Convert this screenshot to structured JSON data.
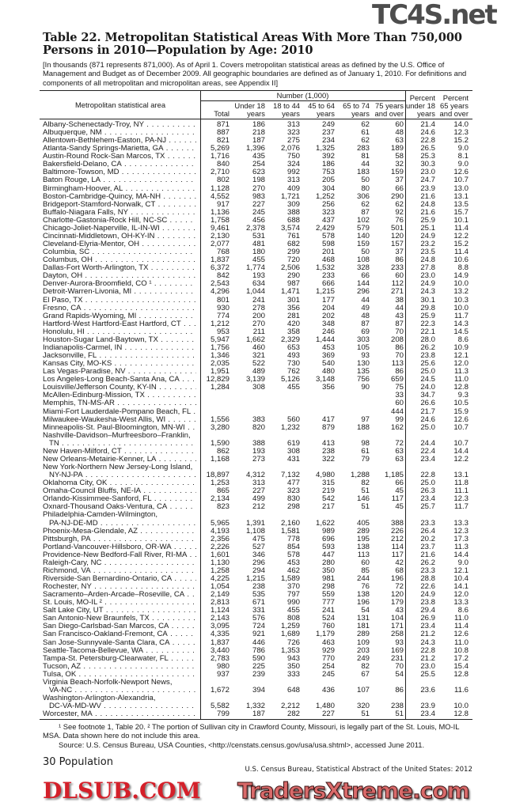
{
  "title": "Table 22. Metropolitan Statistical Areas With More Than 750,000 Persons in 2010—Population by Age: 2010",
  "headnote": "[In thousands (871 represents 871,000). As of April 1. Covers metropolitan statistical areas as defined by the U.S. Office of Management and Budget as of December 2009. All geographic boundaries are defined as of January 1, 2010. For definitions and components of all metropolitan and micropolitan areas, see Appendix II]",
  "header": {
    "area": "Metropolitan statistical area",
    "number_group": "Number (1,000)",
    "columns": [
      [
        "",
        "Total"
      ],
      [
        "Under 18",
        "years"
      ],
      [
        "18 to 44",
        "years"
      ],
      [
        "45 to 64",
        "years"
      ],
      [
        "65 to 74",
        "years"
      ],
      [
        "75 years",
        "and over"
      ],
      [
        "Percent",
        "under 18",
        "years"
      ],
      [
        "Percent",
        "65 years",
        "and over"
      ]
    ]
  },
  "rows": [
    {
      "name": [
        "Albany-Schenectady-Troy, NY"
      ],
      "v": [
        "871",
        "186",
        "313",
        "249",
        "62",
        "60",
        "21.4",
        "14.0"
      ]
    },
    {
      "name": [
        "Albuquerque, NM"
      ],
      "v": [
        "887",
        "218",
        "323",
        "237",
        "61",
        "48",
        "24.6",
        "12.3"
      ]
    },
    {
      "name": [
        "Allentown-Bethlehem-Easton, PA-NJ"
      ],
      "v": [
        "821",
        "187",
        "275",
        "234",
        "62",
        "63",
        "22.8",
        "15.2"
      ]
    },
    {
      "name": [
        "Atlanta-Sandy Springs-Marietta, GA"
      ],
      "v": [
        "5,269",
        "1,396",
        "2,076",
        "1,325",
        "283",
        "189",
        "26.5",
        "9.0"
      ]
    },
    {
      "name": [
        "Austin-Round Rock-San Marcos, TX"
      ],
      "v": [
        "1,716",
        "435",
        "750",
        "392",
        "81",
        "58",
        "25.3",
        "8.1"
      ]
    },
    {
      "name": [
        "Bakersfield-Delano, CA"
      ],
      "v": [
        "840",
        "254",
        "324",
        "186",
        "44",
        "32",
        "30.3",
        "9.0"
      ]
    },
    {
      "name": [
        "Baltimore-Towson, MD"
      ],
      "v": [
        "2,710",
        "623",
        "992",
        "753",
        "183",
        "159",
        "23.0",
        "12.6"
      ]
    },
    {
      "name": [
        "Baton Rouge, LA"
      ],
      "v": [
        "802",
        "198",
        "313",
        "205",
        "50",
        "37",
        "24.7",
        "10.7"
      ]
    },
    {
      "name": [
        "Birmingham-Hoover, AL"
      ],
      "v": [
        "1,128",
        "270",
        "409",
        "304",
        "80",
        "66",
        "23.9",
        "13.0"
      ]
    },
    {
      "name": [
        "Boston-Cambridge-Quincy, MA-NH"
      ],
      "v": [
        "4,552",
        "983",
        "1,721",
        "1,252",
        "306",
        "290",
        "21.6",
        "13.1"
      ]
    },
    {
      "name": [
        "Bridgeport-Stamford-Norwalk, CT"
      ],
      "v": [
        "917",
        "227",
        "309",
        "256",
        "62",
        "62",
        "24.8",
        "13.5"
      ]
    },
    {
      "name": [
        "Buffalo-Niagara Falls, NY"
      ],
      "v": [
        "1,136",
        "245",
        "388",
        "323",
        "87",
        "92",
        "21.6",
        "15.7"
      ]
    },
    {
      "name": [
        "Charlotte-Gastonia-Rock Hill, NC-SC"
      ],
      "v": [
        "1,758",
        "456",
        "688",
        "437",
        "102",
        "76",
        "25.9",
        "10.1"
      ]
    },
    {
      "name": [
        "Chicago-Joliet-Naperville, IL-IN-WI"
      ],
      "v": [
        "9,461",
        "2,378",
        "3,574",
        "2,429",
        "579",
        "501",
        "25.1",
        "11.4"
      ]
    },
    {
      "name": [
        "Cincinnati-Middletown, OH-KY-IN"
      ],
      "v": [
        "2,130",
        "531",
        "761",
        "578",
        "140",
        "120",
        "24.9",
        "12.2"
      ]
    },
    {
      "name": [
        "Cleveland-Elyria-Mentor, OH"
      ],
      "v": [
        "2,077",
        "481",
        "682",
        "598",
        "159",
        "157",
        "23.2",
        "15.2"
      ]
    },
    {
      "name": [
        "Columbia, SC"
      ],
      "v": [
        "768",
        "180",
        "299",
        "201",
        "50",
        "37",
        "23.5",
        "11.4"
      ]
    },
    {
      "name": [
        "Columbus, OH"
      ],
      "v": [
        "1,837",
        "455",
        "720",
        "468",
        "108",
        "86",
        "24.8",
        "10.6"
      ]
    },
    {
      "name": [
        "Dallas-Fort Worth-Arlington, TX"
      ],
      "v": [
        "6,372",
        "1,774",
        "2,506",
        "1,532",
        "328",
        "233",
        "27.8",
        "8.8"
      ]
    },
    {
      "name": [
        "Dayton, OH"
      ],
      "v": [
        "842",
        "193",
        "290",
        "233",
        "66",
        "60",
        "23.0",
        "14.9"
      ]
    },
    {
      "name": [
        "Denver-Aurora-Broomfield, CO ¹"
      ],
      "v": [
        "2,543",
        "634",
        "987",
        "666",
        "144",
        "112",
        "24.9",
        "10.0"
      ]
    },
    {
      "name": [
        "Detroit-Warren-Livonia, MI"
      ],
      "v": [
        "4,296",
        "1,044",
        "1,471",
        "1,215",
        "296",
        "271",
        "24.3",
        "13.2"
      ]
    },
    {
      "name": [
        "El Paso, TX"
      ],
      "v": [
        "801",
        "241",
        "301",
        "177",
        "44",
        "38",
        "30.1",
        "10.3"
      ]
    },
    {
      "name": [
        "Fresno, CA"
      ],
      "v": [
        "930",
        "278",
        "356",
        "204",
        "49",
        "44",
        "29.8",
        "10.0"
      ]
    },
    {
      "name": [
        "Grand Rapids-Wyoming, MI"
      ],
      "v": [
        "774",
        "200",
        "281",
        "202",
        "48",
        "43",
        "25.9",
        "11.7"
      ]
    },
    {
      "name": [
        "Hartford-West Hartford-East Hartford, CT"
      ],
      "v": [
        "1,212",
        "270",
        "420",
        "348",
        "87",
        "87",
        "22.3",
        "14.3"
      ]
    },
    {
      "name": [
        "Honolulu, HI"
      ],
      "v": [
        "953",
        "211",
        "358",
        "246",
        "69",
        "70",
        "22.1",
        "14.5"
      ]
    },
    {
      "name": [
        "Houston-Sugar Land-Baytown, TX"
      ],
      "v": [
        "5,947",
        "1,662",
        "2,329",
        "1,444",
        "303",
        "208",
        "28.0",
        "8.6"
      ]
    },
    {
      "name": [
        "Indianapolis-Carmel, IN"
      ],
      "v": [
        "1,756",
        "460",
        "653",
        "453",
        "105",
        "86",
        "26.2",
        "10.9"
      ]
    },
    {
      "name": [
        "Jacksonville, FL"
      ],
      "v": [
        "1,346",
        "321",
        "493",
        "369",
        "93",
        "70",
        "23.8",
        "12.1"
      ]
    },
    {
      "name": [
        "Kansas City, MO-KS"
      ],
      "v": [
        "2,035",
        "522",
        "730",
        "540",
        "130",
        "113",
        "25.6",
        "12.0"
      ]
    },
    {
      "name": [
        "Las Vegas-Paradise, NV"
      ],
      "v": [
        "1,951",
        "489",
        "762",
        "480",
        "135",
        "86",
        "25.0",
        "11.3"
      ]
    },
    {
      "name": [
        "Los Angeles-Long Beach-Santa Ana, CA"
      ],
      "v": [
        "12,829",
        "3,139",
        "5,126",
        "3,148",
        "756",
        "659",
        "24.5",
        "11.0"
      ]
    },
    {
      "name": [
        "Louisville/Jefferson County, KY-IN"
      ],
      "v": [
        "1,284",
        "308",
        "455",
        "356",
        "90",
        "75",
        "24.0",
        "12.8"
      ]
    },
    {
      "name": [
        "McAllen-Edinburg-Mission, TX"
      ],
      "v": [
        "",
        "",
        "",
        "",
        "",
        "33",
        "34.7",
        "9.3"
      ]
    },
    {
      "name": [
        "Memphis, TN-MS-AR"
      ],
      "v": [
        "",
        "",
        "",
        "",
        "",
        "60",
        "26.6",
        "10.5"
      ]
    },
    {
      "name": [
        "Miami-Fort Lauderdale-Pompano Beach, FL"
      ],
      "v": [
        "",
        "",
        "",
        "",
        "",
        "444",
        "21.7",
        "15.9"
      ]
    },
    {
      "name": [
        "Milwaukee-Waukesha-West Allis, WI"
      ],
      "v": [
        "1,556",
        "383",
        "560",
        "417",
        "97",
        "99",
        "24.6",
        "12.6"
      ]
    },
    {
      "name": [
        "Minneapolis-St. Paul-Bloomington, MN-WI"
      ],
      "v": [
        "3,280",
        "820",
        "1,232",
        "879",
        "188",
        "162",
        "25.0",
        "10.7"
      ]
    },
    {
      "name": [
        "Nashville-Davidson–Murfreesboro–Franklin,",
        "TN"
      ],
      "v": [
        "1,590",
        "388",
        "619",
        "413",
        "98",
        "72",
        "24.4",
        "10.7"
      ]
    },
    {
      "name": [
        "New Haven-Milford, CT"
      ],
      "v": [
        "862",
        "193",
        "308",
        "238",
        "61",
        "63",
        "22.4",
        "14.4"
      ]
    },
    {
      "name": [
        "New Orleans-Metairie-Kenner, LA"
      ],
      "v": [
        "1,168",
        "273",
        "431",
        "322",
        "79",
        "63",
        "23.4",
        "12.2"
      ]
    },
    {
      "name": [
        "New York-Northern New Jersey-Long Island,",
        "NY-NJ-PA"
      ],
      "v": [
        "18,897",
        "4,312",
        "7,132",
        "4,980",
        "1,288",
        "1,185",
        "22.8",
        "13.1"
      ]
    },
    {
      "name": [
        "Oklahoma City, OK"
      ],
      "v": [
        "1,253",
        "313",
        "477",
        "315",
        "82",
        "66",
        "25.0",
        "11.8"
      ]
    },
    {
      "name": [
        "Omaha-Council Bluffs, NE-IA"
      ],
      "v": [
        "865",
        "227",
        "323",
        "219",
        "51",
        "45",
        "26.3",
        "11.1"
      ]
    },
    {
      "name": [
        "Orlando-Kissimmee-Sanford,  FL"
      ],
      "v": [
        "2,134",
        "499",
        "830",
        "542",
        "146",
        "117",
        "23.4",
        "12.3"
      ]
    },
    {
      "name": [
        "Oxnard-Thousand Oaks-Ventura, CA"
      ],
      "v": [
        "823",
        "212",
        "298",
        "217",
        "51",
        "45",
        "25.7",
        "11.7"
      ]
    },
    {
      "name": [
        "Philadelphia-Camden-Wilmington,",
        "PA-NJ-DE-MD"
      ],
      "v": [
        "5,965",
        "1,391",
        "2,160",
        "1,622",
        "405",
        "388",
        "23.3",
        "13.3"
      ]
    },
    {
      "name": [
        "Phoenix-Mesa-Glendale, AZ"
      ],
      "v": [
        "4,193",
        "1,108",
        "1,581",
        "989",
        "289",
        "226",
        "26.4",
        "12.3"
      ]
    },
    {
      "name": [
        "Pittsburgh, PA"
      ],
      "v": [
        "2,356",
        "475",
        "778",
        "696",
        "195",
        "212",
        "20.2",
        "17.3"
      ]
    },
    {
      "name": [
        "Portland-Vancouver-Hillsboro, OR-WA"
      ],
      "v": [
        "2,226",
        "527",
        "854",
        "593",
        "138",
        "114",
        "23.7",
        "11.3"
      ]
    },
    {
      "name": [
        "Providence-New Bedford-Fall River, RI-MA"
      ],
      "v": [
        "1,601",
        "346",
        "578",
        "447",
        "113",
        "117",
        "21.6",
        "14.4"
      ]
    },
    {
      "name": [
        "Raleigh-Cary, NC"
      ],
      "v": [
        "1,130",
        "296",
        "453",
        "280",
        "60",
        "42",
        "26.2",
        "9.0"
      ]
    },
    {
      "name": [
        "Richmond, VA"
      ],
      "v": [
        "1,258",
        "294",
        "462",
        "350",
        "85",
        "68",
        "23.3",
        "12.1"
      ]
    },
    {
      "name": [
        "Riverside-San Bernardino-Ontario, CA"
      ],
      "v": [
        "4,225",
        "1,215",
        "1,589",
        "981",
        "244",
        "196",
        "28.8",
        "10.4"
      ]
    },
    {
      "name": [
        "Rochester, NY"
      ],
      "v": [
        "1,054",
        "238",
        "370",
        "298",
        "76",
        "72",
        "22.6",
        "14.1"
      ]
    },
    {
      "name": [
        "Sacramento–Arden-Arcade–Roseville, CA"
      ],
      "v": [
        "2,149",
        "535",
        "797",
        "559",
        "138",
        "120",
        "24.9",
        "12.0"
      ]
    },
    {
      "name": [
        "St. Louis, MO-IL ²"
      ],
      "v": [
        "2,813",
        "671",
        "990",
        "777",
        "196",
        "179",
        "23.8",
        "13.3"
      ]
    },
    {
      "name": [
        "Salt Lake City, UT"
      ],
      "v": [
        "1,124",
        "331",
        "455",
        "241",
        "54",
        "43",
        "29.4",
        "8.6"
      ]
    },
    {
      "name": [
        "San Antonio-New Braunfels, TX"
      ],
      "v": [
        "2,143",
        "576",
        "808",
        "524",
        "131",
        "104",
        "26.9",
        "11.0"
      ]
    },
    {
      "name": [
        "San Diego-Carlsbad-San Marcos, CA"
      ],
      "v": [
        "3,095",
        "724",
        "1,259",
        "760",
        "181",
        "171",
        "23.4",
        "11.4"
      ]
    },
    {
      "name": [
        "San Francisco-Oakland-Fremont, CA"
      ],
      "v": [
        "4,335",
        "921",
        "1,689",
        "1,179",
        "289",
        "258",
        "21.2",
        "12.6"
      ]
    },
    {
      "name": [
        "San Jose-Sunnyvale-Santa Clara, CA"
      ],
      "v": [
        "1,837",
        "446",
        "726",
        "463",
        "109",
        "93",
        "24.3",
        "11.0"
      ]
    },
    {
      "name": [
        "Seattle-Tacoma-Bellevue, WA"
      ],
      "v": [
        "3,440",
        "786",
        "1,353",
        "929",
        "203",
        "169",
        "22.8",
        "10.8"
      ]
    },
    {
      "name": [
        "Tampa-St. Petersburg-Clearwater, FL"
      ],
      "v": [
        "2,783",
        "590",
        "943",
        "770",
        "249",
        "231",
        "21.2",
        "17.2"
      ]
    },
    {
      "name": [
        "Tucson, AZ"
      ],
      "v": [
        "980",
        "225",
        "350",
        "254",
        "82",
        "70",
        "23.0",
        "15.4"
      ]
    },
    {
      "name": [
        "Tulsa, OK"
      ],
      "v": [
        "937",
        "239",
        "333",
        "245",
        "67",
        "54",
        "25.5",
        "12.8"
      ]
    },
    {
      "name": [
        "Virginia Beach-Norfolk-Newport News,",
        "VA-NC"
      ],
      "v": [
        "1,672",
        "394",
        "648",
        "436",
        "107",
        "86",
        "23.6",
        "11.6"
      ]
    },
    {
      "name": [
        "Washington-Arlington-Alexandria,",
        "DC-VA-MD-WV"
      ],
      "v": [
        "5,582",
        "1,332",
        "2,212",
        "1,480",
        "320",
        "238",
        "23.9",
        "10.0"
      ]
    },
    {
      "name": [
        "Worcester, MA"
      ],
      "v": [
        "799",
        "187",
        "282",
        "227",
        "51",
        "51",
        "23.4",
        "12.8"
      ]
    }
  ],
  "footnotes": {
    "note1": "¹ See footnote 1, Table 20. ² The portion of Sullivan city in Crawford County, Missouri, is legally part of the St. Louis, MO-IL MSA. Data shown here do not include this area.",
    "source": "Source: U.S. Census Bureau, USA Counties, <http://censtats.census.gov/usa/usa.shtml>, accessed June 2011."
  },
  "page_footer": {
    "page": "30  Population",
    "publication": "U.S. Census Bureau, Statistical Abstract of the United States: 2012"
  },
  "watermarks": {
    "top": "TC4S.net",
    "middle": "DLSUB.COM",
    "bottom": "TradersXtreme.com"
  },
  "colors": {
    "text": "#1a1a1a",
    "watermark_red": "#d4202a",
    "watermark_dark": "#3a3a3a"
  }
}
